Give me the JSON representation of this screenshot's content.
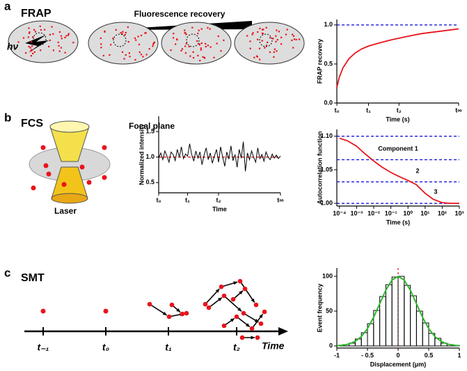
{
  "panels": {
    "a": {
      "letter": "a",
      "name": "FRAP",
      "arrow": "Fluorescence recovery",
      "light": "hν"
    },
    "b": {
      "letter": "b",
      "name": "FCS",
      "focal": "Focal plane",
      "laser": "Laser"
    },
    "c": {
      "letter": "c",
      "name": "SMT",
      "times": [
        "t₋₁",
        "t₀",
        "t₁",
        "t₂"
      ],
      "axis": "Time"
    }
  },
  "chart_data": [
    {
      "type": "line",
      "xlabel": "Time (s)",
      "ylabel": "FRAP recovery",
      "xlim": [
        0,
        100
      ],
      "xticks": [
        {
          "value": 0,
          "label": "t₀"
        },
        {
          "value": 26,
          "label": "t₁"
        },
        {
          "value": 51,
          "label": "t₂"
        },
        {
          "value": 100,
          "label": "t∞"
        }
      ],
      "ylim": [
        0,
        1.07
      ],
      "yticks": [
        {
          "value": 0,
          "label": "0.0"
        },
        {
          "value": 0.5,
          "label": "0.5"
        },
        {
          "value": 1,
          "label": "1.0"
        }
      ],
      "hlines": [
        {
          "value": 1,
          "color": "#1a1adc"
        }
      ],
      "x": [
        0,
        2,
        5,
        10,
        15,
        20,
        26,
        35,
        45,
        51,
        60,
        70,
        80,
        90,
        100
      ],
      "series": [
        {
          "color": "#e8141b",
          "values": [
            0.2,
            0.33,
            0.45,
            0.57,
            0.64,
            0.69,
            0.73,
            0.77,
            0.81,
            0.83,
            0.86,
            0.89,
            0.91,
            0.93,
            0.95
          ]
        }
      ]
    },
    {
      "type": "line",
      "xlabel": "Time",
      "ylabel": "Normalized intensity",
      "xlim": [
        0,
        59
      ],
      "xticks": [
        {
          "value": 0,
          "label": "t₀"
        },
        {
          "value": 14,
          "label": "t₁"
        },
        {
          "value": 29,
          "label": "t₂"
        },
        {
          "value": 59,
          "label": "t∞"
        }
      ],
      "ylim": [
        0.3,
        1.8
      ],
      "yticks": [
        0.5,
        {
          "value": 1,
          "label": "1.0"
        },
        1.5
      ],
      "hlines": [
        {
          "value": 1,
          "color": "#e8141b"
        }
      ],
      "x": [
        0,
        1,
        2,
        3,
        4,
        5,
        6,
        7,
        8,
        9,
        10,
        11,
        12,
        13,
        14,
        15,
        16,
        17,
        18,
        19,
        20,
        21,
        22,
        23,
        24,
        25,
        26,
        27,
        28,
        29,
        30,
        31,
        32,
        33,
        34,
        35,
        36,
        37,
        38,
        39,
        40,
        41,
        42,
        43,
        44,
        45,
        46,
        47,
        48,
        49,
        50,
        51,
        52,
        53,
        54,
        55,
        56,
        57,
        58,
        59
      ],
      "series": [
        {
          "color": "#000000",
          "values": [
            0.98,
            1.08,
            0.95,
            1.12,
            1.02,
            0.9,
            1.1,
            1.05,
            0.93,
            1.15,
            1.0,
            1.2,
            0.97,
            1.06,
            1.02,
            1.26,
            1.05,
            0.92,
            1.12,
            0.98,
            1.1,
            0.85,
            1.04,
            1.18,
            0.95,
            1.08,
            0.88,
            1.02,
            1.15,
            0.9,
            1.2,
            1.0,
            0.82,
            1.1,
            0.96,
            1.22,
            0.93,
            1.05,
            0.8,
            1.15,
            0.98,
            1.3,
            0.72,
            1.08,
            0.95,
            1.12,
            1.0,
            0.9,
            1.18,
            0.97,
            1.05,
            0.92,
            1.1,
            1.0,
            0.95,
            1.06,
            0.98,
            1.04,
            0.97,
            1.02
          ]
        }
      ]
    },
    {
      "type": "line",
      "xscale": "log",
      "xlabel": "Time (s)",
      "ylabel": "Autocorrelation function",
      "xlim": [
        7e-05,
        1000
      ],
      "xticks": [
        {
          "value": 0.0001,
          "label": "10⁻⁴"
        },
        {
          "value": 0.001,
          "label": "10⁻³"
        },
        {
          "value": 0.01,
          "label": "10⁻²"
        },
        {
          "value": 0.1,
          "label": "10⁻¹"
        },
        {
          "value": 1,
          "label": "10⁰"
        },
        {
          "value": 10,
          "label": "10¹"
        },
        {
          "value": 100,
          "label": "10²"
        },
        {
          "value": 1000,
          "label": "10³"
        }
      ],
      "ylim": [
        0.996,
        1.11
      ],
      "yticks": [
        {
          "value": 1,
          "label": "1.00"
        },
        1.05,
        {
          "value": 1.1,
          "label": "1.10"
        }
      ],
      "hlines": [
        {
          "value": 1.1,
          "color": "#1a1adc"
        },
        {
          "value": 1.065,
          "color": "#1a1adc"
        },
        {
          "value": 1.032,
          "color": "#1a1adc"
        },
        {
          "value": 1,
          "color": "#1a1adc"
        }
      ],
      "annotations": [
        "Component 1",
        "2",
        "3"
      ],
      "x": [
        0.0001,
        0.0003,
        0.001,
        0.003,
        0.01,
        0.03,
        0.1,
        0.3,
        1,
        3,
        10,
        30,
        100,
        300,
        1000
      ],
      "series": [
        {
          "color": "#e8141b",
          "values": [
            1.097,
            1.093,
            1.085,
            1.074,
            1.063,
            1.054,
            1.046,
            1.04,
            1.034,
            1.028,
            1.015,
            1.006,
            1.001,
            1.0,
            1.0
          ]
        }
      ]
    },
    {
      "type": "histogram",
      "xlabel": "Displacement (μm)",
      "ylabel": "Event frequency",
      "xlim": [
        -1,
        1
      ],
      "xticks": [
        -1,
        {
          "value": -0.5,
          "label": "- 0.5"
        },
        0,
        0.5,
        1
      ],
      "ylim": [
        -3,
        112
      ],
      "yticks": [
        0,
        50,
        100
      ],
      "vlines": [
        {
          "value": 0,
          "color": "#e8141b"
        }
      ],
      "bins": [
        -1,
        -0.9,
        -0.8,
        -0.7,
        -0.6,
        -0.5,
        -0.4,
        -0.3,
        -0.2,
        -0.1,
        0,
        0.1,
        0.2,
        0.3,
        0.4,
        0.5,
        0.6,
        0.7,
        0.8,
        0.9,
        1
      ],
      "counts": [
        1,
        2,
        4,
        10,
        19,
        32,
        51,
        71,
        88,
        99,
        100,
        87,
        72,
        50,
        33,
        18,
        11,
        4,
        2,
        1
      ],
      "x": [
        -1,
        -0.9,
        -0.8,
        -0.7,
        -0.6,
        -0.5,
        -0.4,
        -0.3,
        -0.2,
        -0.1,
        0,
        0.1,
        0.2,
        0.3,
        0.4,
        0.5,
        0.6,
        0.7,
        0.8,
        0.9,
        1
      ],
      "series": [
        {
          "color": "#2db82d",
          "values": [
            0.4,
            1.1,
            2.8,
            6.6,
            13.5,
            24.9,
            41.1,
            60.7,
            80.1,
            94.6,
            100,
            94.6,
            80.1,
            60.7,
            41.1,
            24.9,
            13.5,
            6.6,
            2.8,
            1.1,
            0.4
          ]
        }
      ]
    }
  ]
}
